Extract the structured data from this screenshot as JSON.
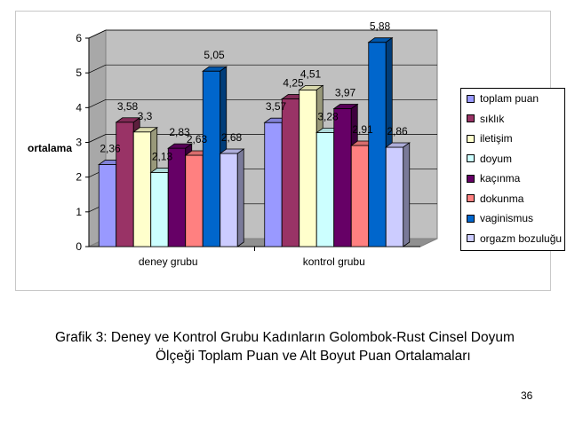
{
  "chart_data": {
    "type": "bar",
    "style": "3d-clustered",
    "categories": [
      "deney grubu",
      "kontrol grubu"
    ],
    "series": [
      {
        "name": "toplam puan",
        "color": "#9999ff",
        "values": [
          2.36,
          3.57
        ],
        "labels": [
          "2,36",
          "3,57"
        ]
      },
      {
        "name": "sıklık",
        "color": "#993366",
        "values": [
          3.58,
          4.25
        ],
        "labels": [
          "3,58",
          "4,25"
        ]
      },
      {
        "name": "iletişim",
        "color": "#ffffcc",
        "values": [
          3.3,
          4.51
        ],
        "labels": [
          "3,3",
          "4,51"
        ]
      },
      {
        "name": "doyum",
        "color": "#ccffff",
        "values": [
          2.13,
          3.28
        ],
        "labels": [
          "2,13",
          "3,28"
        ]
      },
      {
        "name": "kaçınma",
        "color": "#660066",
        "values": [
          2.83,
          3.97
        ],
        "labels": [
          "2,83",
          "3,97"
        ]
      },
      {
        "name": "dokunma",
        "color": "#ff8080",
        "values": [
          2.63,
          2.91
        ],
        "labels": [
          "2,63",
          "2,91"
        ]
      },
      {
        "name": "vaginismus",
        "color": "#0066cc",
        "values": [
          5.05,
          5.88
        ],
        "labels": [
          "5,05",
          "5,88"
        ]
      },
      {
        "name": "orgazm bozuluğu",
        "color": "#ccccff",
        "values": [
          2.68,
          2.86
        ],
        "labels": [
          "2,68",
          "2,86"
        ]
      }
    ],
    "ylabel": "ortalama",
    "ylim": [
      0,
      6
    ],
    "yticks": [
      "0",
      "1",
      "2",
      "3",
      "4",
      "5",
      "6"
    ],
    "grid": true,
    "legend": "right"
  },
  "caption": {
    "line1": "Grafik 3: Deney ve Kontrol Grubu Kadınların Golombok-Rust Cinsel  Doyum",
    "line2": "Ölçeği Toplam Puan ve Alt Boyut Puan Ortalamaları"
  },
  "page_number": "36"
}
